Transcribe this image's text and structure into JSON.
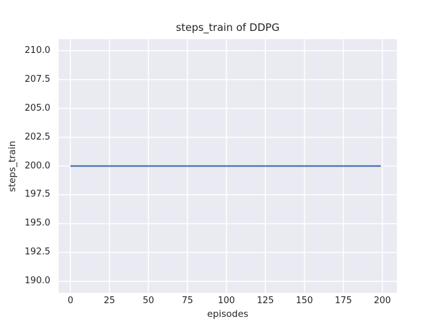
{
  "chart_data": {
    "type": "line",
    "title": "steps_train of DDPG",
    "xlabel": "episodes",
    "ylabel": "steps_train",
    "series": [
      {
        "name": "steps_train",
        "color": "#4C72B0",
        "x": [
          0,
          199
        ],
        "y": [
          200,
          200
        ],
        "description": "constant value 200 for every episode from 0 to 199"
      }
    ],
    "xticks": [
      0,
      25,
      50,
      75,
      100,
      125,
      150,
      175,
      200
    ],
    "xtick_labels": [
      "0",
      "25",
      "50",
      "75",
      "100",
      "125",
      "150",
      "175",
      "200"
    ],
    "yticks": [
      190.0,
      192.5,
      195.0,
      197.5,
      200.0,
      202.5,
      205.0,
      207.5,
      210.0
    ],
    "ytick_labels": [
      "190.0",
      "192.5",
      "195.0",
      "197.5",
      "200.0",
      "202.5",
      "205.0",
      "207.5",
      "210.0"
    ],
    "xlim": [
      -7.6,
      209.3
    ],
    "ylim": [
      189.0,
      211.0
    ],
    "grid": true,
    "legend": false,
    "colors": {
      "figure_background": "#FFFFFF",
      "axes_background": "#EAEAF2",
      "gridline": "#FFFFFF",
      "line": "#4C72B0",
      "text": "#262626"
    }
  }
}
